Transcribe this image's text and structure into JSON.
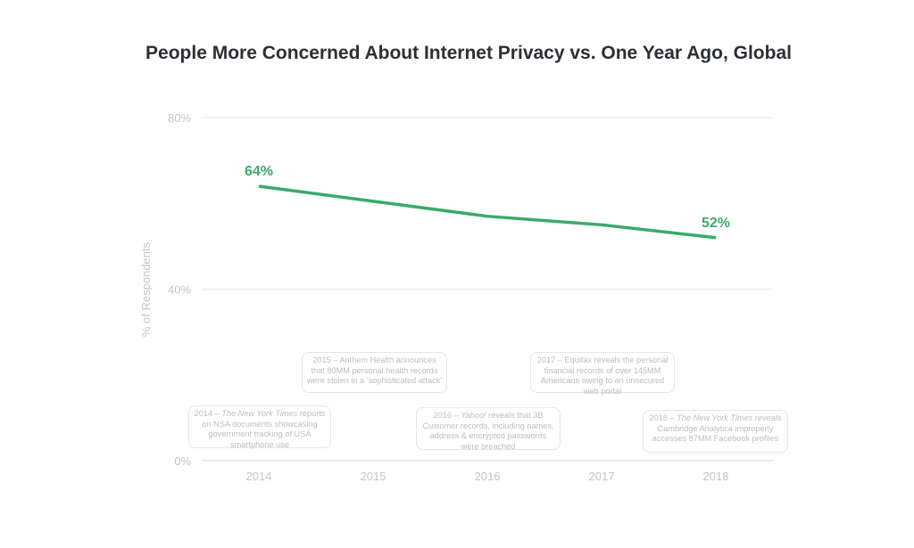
{
  "chart_data": {
    "type": "line",
    "title": "People More Concerned About Internet Privacy vs. One Year Ago, Global",
    "ylabel": "% of Respondents",
    "xlabel": "",
    "categories": [
      "2014",
      "2015",
      "2016",
      "2017",
      "2018"
    ],
    "values": [
      64,
      60.5,
      57,
      55,
      52
    ],
    "ylim": [
      0,
      80
    ],
    "yticks": [
      "0%",
      "40%",
      "80%"
    ],
    "ytick_values": [
      0,
      40,
      80
    ],
    "grid": true,
    "line_color": "#3aaa6a",
    "data_labels": [
      {
        "category": "2014",
        "text": "64%"
      },
      {
        "category": "2018",
        "text": "52%"
      }
    ],
    "annotations": [
      {
        "category": "2014",
        "segments": [
          {
            "text": "2014 – "
          },
          {
            "text": "The New York Times",
            "italic": true
          },
          {
            "text": " reports on NSA documents showcasing government tracking of USA smartphone use"
          }
        ]
      },
      {
        "category": "2015",
        "segments": [
          {
            "text": "2015 – Anthem Health announces that 80MM personal health records were stolen in a 'sophisticated attack'"
          }
        ]
      },
      {
        "category": "2016",
        "segments": [
          {
            "text": "2016 – "
          },
          {
            "text": "Yahoo!",
            "italic": true
          },
          {
            "text": " reveals that 3B Customer records, including names, address & encrypted passwords were breached"
          }
        ]
      },
      {
        "category": "2017",
        "segments": [
          {
            "text": "2017 – Equifax reveals the personal financial records of over 145MM Americans owing to an unsecured web portal"
          }
        ]
      },
      {
        "category": "2018",
        "segments": [
          {
            "text": "2018 – "
          },
          {
            "text": "The New York Times",
            "italic": true
          },
          {
            "text": " reveals Cambridge Analytica improperly accesses 87MM Facebook profiles"
          }
        ]
      }
    ]
  }
}
